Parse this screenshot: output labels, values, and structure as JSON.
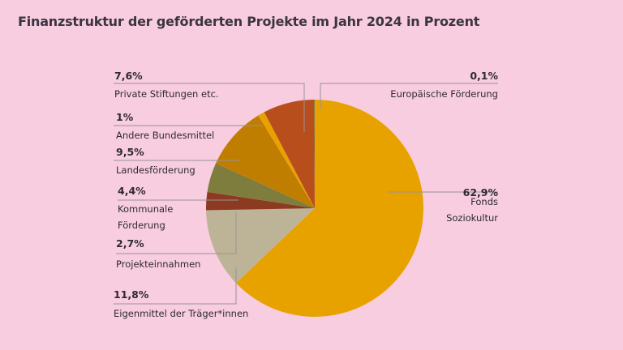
{
  "chart_data": {
    "type": "pie",
    "title": "Finanzstruktur der geförderten Projekte im Jahr 2024 in Prozent",
    "start_angle": "12 o'clock, clockwise",
    "slices": [
      {
        "name": "Fonds Soziokultur",
        "name_lines": [
          "Fonds",
          "Soziokultur"
        ],
        "value": 62.9,
        "label": "62,9%",
        "color": "#e8a200"
      },
      {
        "name": "Eigenmittel der Träger*innen",
        "name_lines": [
          "Eigenmittel der Träger*innen"
        ],
        "value": 11.8,
        "label": "11,8%",
        "color": "#bdb497"
      },
      {
        "name": "Projekteinnahmen",
        "name_lines": [
          "Projekteinnahmen"
        ],
        "value": 2.7,
        "label": "2,7%",
        "color": "#8c3a20"
      },
      {
        "name": "Kommunale Förderung",
        "name_lines": [
          "Kommunale",
          "Förderung"
        ],
        "value": 4.4,
        "label": "4,4%",
        "color": "#7f7d3e"
      },
      {
        "name": "Landesförderung",
        "name_lines": [
          "Landesförderung"
        ],
        "value": 9.5,
        "label": "9,5%",
        "color": "#c07e00"
      },
      {
        "name": "Andere Bundesmittel",
        "name_lines": [
          "Andere Bundesmittel"
        ],
        "value": 1.0,
        "label": "1%",
        "color": "#e8a200"
      },
      {
        "name": "Private Stiftungen etc.",
        "name_lines": [
          "Private Stiftungen etc."
        ],
        "value": 7.6,
        "label": "7,6%",
        "color": "#b84e1c"
      },
      {
        "name": "Europäische Förderung",
        "name_lines": [
          "Europäische Förderung"
        ],
        "value": 0.1,
        "label": "0,1%",
        "color": "#6f7a3a"
      }
    ]
  }
}
